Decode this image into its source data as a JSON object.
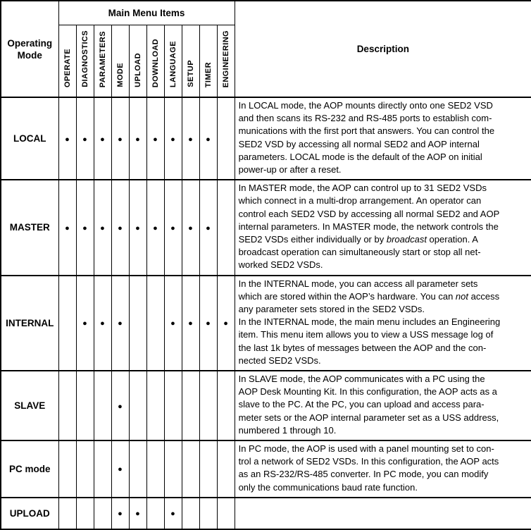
{
  "page": {
    "background_color": "#ffffff",
    "border_color": "#000000",
    "text_color": "#000000"
  },
  "table": {
    "operating_mode_header": "Operating Mode",
    "main_menu_header": "Main Menu Items",
    "description_header": "Description",
    "bullet_symbol": "●",
    "menu_columns": [
      "OPERATE",
      "DIAGNOSTICS",
      "PARAMETERS",
      "MODE",
      "UPLOAD",
      "DOWNLOAD",
      "LANGUAGE",
      "SETUP",
      "TIMER",
      "ENGINEERING"
    ],
    "rows": [
      {
        "mode": "LOCAL",
        "enabled_menu_items": [
          "OPERATE",
          "DIAGNOSTICS",
          "PARAMETERS",
          "MODE",
          "UPLOAD",
          "DOWNLOAD",
          "LANGUAGE",
          "SETUP",
          "TIMER"
        ],
        "description_lines": [
          "In LOCAL mode, the AOP mounts directly onto one SED2 VSD",
          "and then scans its RS-232 and RS-485 ports to establish com-",
          "munications with the first port that answers. You can control the",
          "SED2 VSD by accessing all normal SED2 and AOP internal",
          "parameters. LOCAL mode is the default of the AOP on initial",
          "power-up or after a reset."
        ]
      },
      {
        "mode": "MASTER",
        "enabled_menu_items": [
          "OPERATE",
          "DIAGNOSTICS",
          "PARAMETERS",
          "MODE",
          "UPLOAD",
          "DOWNLOAD",
          "LANGUAGE",
          "SETUP",
          "TIMER"
        ],
        "description_lines": [
          "In MASTER mode, the AOP can control up to 31 SED2 VSDs",
          "which connect in a multi-drop arrangement. An operator can",
          "control each SED2 VSD by accessing all normal SED2 and AOP",
          "internal parameters. In MASTER mode, the network controls the",
          "SED2 VSDs either individually or by *broadcast* operation. A",
          "broadcast operation can simultaneously start or stop all net-",
          "worked SED2 VSDs."
        ]
      },
      {
        "mode": "INTERNAL",
        "enabled_menu_items": [
          "DIAGNOSTICS",
          "PARAMETERS",
          "MODE",
          "LANGUAGE",
          "SETUP",
          "TIMER",
          "ENGINEERING"
        ],
        "description_lines": [
          "In the INTERNAL mode, you can access all parameter sets",
          "which are stored within the AOP’s hardware. You can *not* access",
          "any parameter sets stored in the SED2 VSDs.",
          "In the INTERNAL mode, the main menu includes an Engineering",
          "item. This menu item allows you to view a USS message log of",
          "the last 1k bytes of messages between the AOP and the con-",
          "nected SED2 VSDs."
        ]
      },
      {
        "mode": "SLAVE",
        "enabled_menu_items": [
          "MODE"
        ],
        "description_lines": [
          "In SLAVE mode, the AOP communicates with a PC using the",
          "AOP Desk Mounting Kit. In this configuration, the AOP acts as a",
          "slave to the PC. At the PC, you can upload and access para-",
          "meter sets or the AOP internal parameter set as a USS address,",
          "numbered 1 through 10."
        ]
      },
      {
        "mode": "PC mode",
        "enabled_menu_items": [
          "MODE"
        ],
        "description_lines": [
          "In PC mode, the AOP is used with a panel mounting set to con-",
          "trol a network of SED2 VSDs. In this configuration, the AOP acts",
          "as an RS-232/RS-485 converter. In PC mode, you can modify",
          "only the communications baud rate function."
        ]
      },
      {
        "mode": "UPLOAD",
        "enabled_menu_items": [
          "MODE",
          "UPLOAD",
          "LANGUAGE"
        ],
        "description_lines": []
      }
    ]
  }
}
